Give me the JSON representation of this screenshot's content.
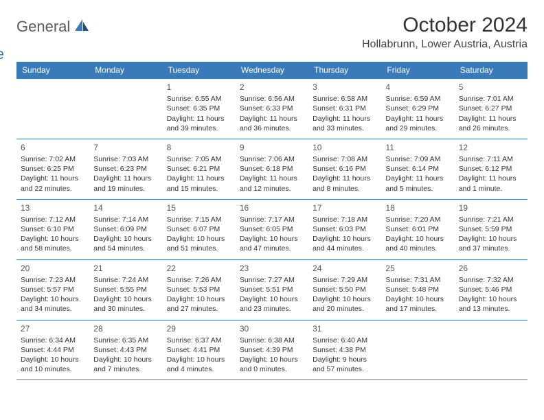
{
  "logo": {
    "general": "General",
    "blue": "Blue"
  },
  "title": "October 2024",
  "location": "Hollabrunn, Lower Austria, Austria",
  "weekdays": [
    "Sunday",
    "Monday",
    "Tuesday",
    "Wednesday",
    "Thursday",
    "Friday",
    "Saturday"
  ],
  "colors": {
    "header_bg": "#3a7ab8",
    "header_text": "#ffffff",
    "border": "#3a7ab8",
    "body_text": "#333333",
    "logo_gray": "#5a5a5a",
    "logo_blue": "#3a7ab8",
    "background": "#ffffff"
  },
  "weeks": [
    [
      null,
      null,
      {
        "n": "1",
        "sr": "Sunrise: 6:55 AM",
        "ss": "Sunset: 6:35 PM",
        "dl1": "Daylight: 11 hours",
        "dl2": "and 39 minutes."
      },
      {
        "n": "2",
        "sr": "Sunrise: 6:56 AM",
        "ss": "Sunset: 6:33 PM",
        "dl1": "Daylight: 11 hours",
        "dl2": "and 36 minutes."
      },
      {
        "n": "3",
        "sr": "Sunrise: 6:58 AM",
        "ss": "Sunset: 6:31 PM",
        "dl1": "Daylight: 11 hours",
        "dl2": "and 33 minutes."
      },
      {
        "n": "4",
        "sr": "Sunrise: 6:59 AM",
        "ss": "Sunset: 6:29 PM",
        "dl1": "Daylight: 11 hours",
        "dl2": "and 29 minutes."
      },
      {
        "n": "5",
        "sr": "Sunrise: 7:01 AM",
        "ss": "Sunset: 6:27 PM",
        "dl1": "Daylight: 11 hours",
        "dl2": "and 26 minutes."
      }
    ],
    [
      {
        "n": "6",
        "sr": "Sunrise: 7:02 AM",
        "ss": "Sunset: 6:25 PM",
        "dl1": "Daylight: 11 hours",
        "dl2": "and 22 minutes."
      },
      {
        "n": "7",
        "sr": "Sunrise: 7:03 AM",
        "ss": "Sunset: 6:23 PM",
        "dl1": "Daylight: 11 hours",
        "dl2": "and 19 minutes."
      },
      {
        "n": "8",
        "sr": "Sunrise: 7:05 AM",
        "ss": "Sunset: 6:21 PM",
        "dl1": "Daylight: 11 hours",
        "dl2": "and 15 minutes."
      },
      {
        "n": "9",
        "sr": "Sunrise: 7:06 AM",
        "ss": "Sunset: 6:18 PM",
        "dl1": "Daylight: 11 hours",
        "dl2": "and 12 minutes."
      },
      {
        "n": "10",
        "sr": "Sunrise: 7:08 AM",
        "ss": "Sunset: 6:16 PM",
        "dl1": "Daylight: 11 hours",
        "dl2": "and 8 minutes."
      },
      {
        "n": "11",
        "sr": "Sunrise: 7:09 AM",
        "ss": "Sunset: 6:14 PM",
        "dl1": "Daylight: 11 hours",
        "dl2": "and 5 minutes."
      },
      {
        "n": "12",
        "sr": "Sunrise: 7:11 AM",
        "ss": "Sunset: 6:12 PM",
        "dl1": "Daylight: 11 hours",
        "dl2": "and 1 minute."
      }
    ],
    [
      {
        "n": "13",
        "sr": "Sunrise: 7:12 AM",
        "ss": "Sunset: 6:10 PM",
        "dl1": "Daylight: 10 hours",
        "dl2": "and 58 minutes."
      },
      {
        "n": "14",
        "sr": "Sunrise: 7:14 AM",
        "ss": "Sunset: 6:09 PM",
        "dl1": "Daylight: 10 hours",
        "dl2": "and 54 minutes."
      },
      {
        "n": "15",
        "sr": "Sunrise: 7:15 AM",
        "ss": "Sunset: 6:07 PM",
        "dl1": "Daylight: 10 hours",
        "dl2": "and 51 minutes."
      },
      {
        "n": "16",
        "sr": "Sunrise: 7:17 AM",
        "ss": "Sunset: 6:05 PM",
        "dl1": "Daylight: 10 hours",
        "dl2": "and 47 minutes."
      },
      {
        "n": "17",
        "sr": "Sunrise: 7:18 AM",
        "ss": "Sunset: 6:03 PM",
        "dl1": "Daylight: 10 hours",
        "dl2": "and 44 minutes."
      },
      {
        "n": "18",
        "sr": "Sunrise: 7:20 AM",
        "ss": "Sunset: 6:01 PM",
        "dl1": "Daylight: 10 hours",
        "dl2": "and 40 minutes."
      },
      {
        "n": "19",
        "sr": "Sunrise: 7:21 AM",
        "ss": "Sunset: 5:59 PM",
        "dl1": "Daylight: 10 hours",
        "dl2": "and 37 minutes."
      }
    ],
    [
      {
        "n": "20",
        "sr": "Sunrise: 7:23 AM",
        "ss": "Sunset: 5:57 PM",
        "dl1": "Daylight: 10 hours",
        "dl2": "and 34 minutes."
      },
      {
        "n": "21",
        "sr": "Sunrise: 7:24 AM",
        "ss": "Sunset: 5:55 PM",
        "dl1": "Daylight: 10 hours",
        "dl2": "and 30 minutes."
      },
      {
        "n": "22",
        "sr": "Sunrise: 7:26 AM",
        "ss": "Sunset: 5:53 PM",
        "dl1": "Daylight: 10 hours",
        "dl2": "and 27 minutes."
      },
      {
        "n": "23",
        "sr": "Sunrise: 7:27 AM",
        "ss": "Sunset: 5:51 PM",
        "dl1": "Daylight: 10 hours",
        "dl2": "and 23 minutes."
      },
      {
        "n": "24",
        "sr": "Sunrise: 7:29 AM",
        "ss": "Sunset: 5:50 PM",
        "dl1": "Daylight: 10 hours",
        "dl2": "and 20 minutes."
      },
      {
        "n": "25",
        "sr": "Sunrise: 7:31 AM",
        "ss": "Sunset: 5:48 PM",
        "dl1": "Daylight: 10 hours",
        "dl2": "and 17 minutes."
      },
      {
        "n": "26",
        "sr": "Sunrise: 7:32 AM",
        "ss": "Sunset: 5:46 PM",
        "dl1": "Daylight: 10 hours",
        "dl2": "and 13 minutes."
      }
    ],
    [
      {
        "n": "27",
        "sr": "Sunrise: 6:34 AM",
        "ss": "Sunset: 4:44 PM",
        "dl1": "Daylight: 10 hours",
        "dl2": "and 10 minutes."
      },
      {
        "n": "28",
        "sr": "Sunrise: 6:35 AM",
        "ss": "Sunset: 4:43 PM",
        "dl1": "Daylight: 10 hours",
        "dl2": "and 7 minutes."
      },
      {
        "n": "29",
        "sr": "Sunrise: 6:37 AM",
        "ss": "Sunset: 4:41 PM",
        "dl1": "Daylight: 10 hours",
        "dl2": "and 4 minutes."
      },
      {
        "n": "30",
        "sr": "Sunrise: 6:38 AM",
        "ss": "Sunset: 4:39 PM",
        "dl1": "Daylight: 10 hours",
        "dl2": "and 0 minutes."
      },
      {
        "n": "31",
        "sr": "Sunrise: 6:40 AM",
        "ss": "Sunset: 4:38 PM",
        "dl1": "Daylight: 9 hours",
        "dl2": "and 57 minutes."
      },
      null,
      null
    ]
  ]
}
